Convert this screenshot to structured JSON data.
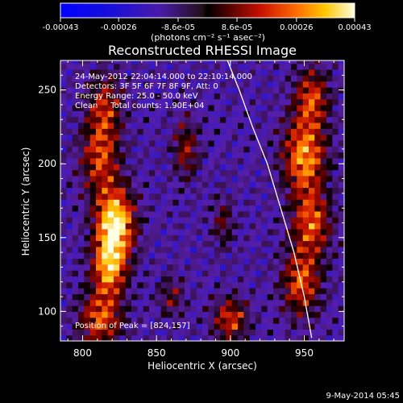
{
  "chart_data": {
    "type": "heatmap",
    "title": "Reconstructed RHESSI Image",
    "xlabel": "Heliocentric X (arcsec)",
    "ylabel": "Heliocentric Y (arcsec)",
    "xlim": [
      785,
      977
    ],
    "ylim": [
      80,
      270
    ],
    "x_ticks": [
      800,
      850,
      900,
      950
    ],
    "y_ticks": [
      100,
      150,
      200,
      250
    ],
    "colorbar": {
      "min": -0.00043,
      "max": 0.00043,
      "tick_values": [
        -0.00043,
        -0.00026,
        -8.6e-05,
        8.6e-05,
        0.00026,
        0.00043
      ],
      "tick_labels": [
        "-0.00043",
        "-0.00026",
        "-8.6e-05",
        "8.6e-05",
        "0.00026",
        "0.00043"
      ],
      "unit_label": "(photons cm⁻² s⁻¹ asec⁻²)"
    },
    "annotations": [
      "24-May-2012 22:04:14.000 to 22:10:14.000",
      "Detectors: 3F 5F 6F 7F 8F 9F, Att: 0",
      "Energy Range: 25.0 - 50.0 keV",
      "Clean     Total counts: 1.90E+04"
    ],
    "peak_label": "Position of Peak = [824,157]",
    "peak": [
      824,
      157
    ],
    "limb_curve": [
      [
        898,
        270
      ],
      [
        906,
        250
      ],
      [
        915,
        225
      ],
      [
        925,
        200
      ],
      [
        934,
        170
      ],
      [
        943,
        140
      ],
      [
        950,
        110
      ],
      [
        955,
        82
      ]
    ],
    "sources": [
      {
        "x": 822,
        "y": 160,
        "sx": 9,
        "sy": 16,
        "amp": 1.0
      },
      {
        "x": 818,
        "y": 130,
        "sx": 8,
        "sy": 14,
        "amp": 0.75
      },
      {
        "x": 812,
        "y": 95,
        "sx": 10,
        "sy": 13,
        "amp": 0.6
      },
      {
        "x": 812,
        "y": 205,
        "sx": 9,
        "sy": 18,
        "amp": 0.55
      },
      {
        "x": 815,
        "y": 240,
        "sx": 8,
        "sy": 15,
        "amp": 0.45
      },
      {
        "x": 950,
        "y": 205,
        "sx": 10,
        "sy": 18,
        "amp": 0.75
      },
      {
        "x": 955,
        "y": 160,
        "sx": 9,
        "sy": 15,
        "amp": 0.6
      },
      {
        "x": 948,
        "y": 120,
        "sx": 9,
        "sy": 16,
        "amp": 0.6
      },
      {
        "x": 955,
        "y": 245,
        "sx": 8,
        "sy": 14,
        "amp": 0.55
      },
      {
        "x": 870,
        "y": 210,
        "sx": 6,
        "sy": 14,
        "amp": 0.4
      },
      {
        "x": 900,
        "y": 95,
        "sx": 8,
        "sy": 10,
        "amp": 0.55
      },
      {
        "x": 860,
        "y": 110,
        "sx": 6,
        "sy": 10,
        "amp": 0.3
      },
      {
        "x": 895,
        "y": 160,
        "sx": 5,
        "sy": 12,
        "amp": 0.3
      }
    ]
  },
  "footer_timestamp": "9-May-2014 05:45"
}
